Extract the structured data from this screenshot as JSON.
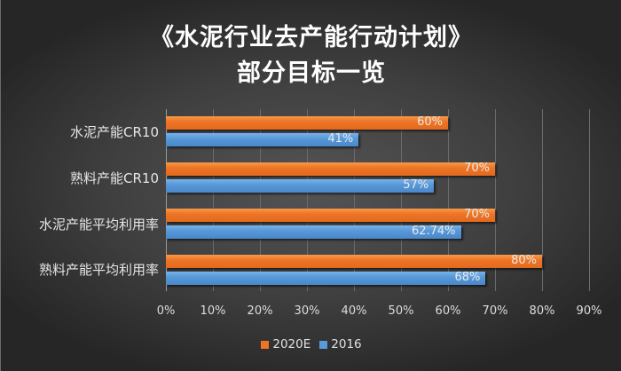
{
  "title": {
    "line1": "《水泥行业去产能行动计划》",
    "line2": "部分目标一览"
  },
  "colors": {
    "series_2020E": "#ee7526",
    "series_2016": "#5899d9",
    "background": "#3f3f3f"
  },
  "axis": {
    "ticks": [
      "0%",
      "10%",
      "20%",
      "30%",
      "40%",
      "50%",
      "60%",
      "70%",
      "80%",
      "90%"
    ]
  },
  "legend": {
    "items": [
      {
        "label": "2020E",
        "color": "#ee7526"
      },
      {
        "label": "2016",
        "color": "#5899d9"
      }
    ]
  },
  "categories": [
    {
      "label": "水泥产能CR10",
      "v2020E": 60,
      "v2016": 41,
      "label2020E": "60%",
      "label2016": "41%"
    },
    {
      "label": "熟料产能CR10",
      "v2020E": 70,
      "v2016": 57,
      "label2020E": "70%",
      "label2016": "57%"
    },
    {
      "label": "水泥产能平均利用率",
      "v2020E": 70,
      "v2016": 62.74,
      "label2020E": "70%",
      "label2016": "62.74%"
    },
    {
      "label": "熟料产能平均利用率",
      "v2020E": 80,
      "v2016": 68,
      "label2020E": "80%",
      "label2016": "68%"
    }
  ],
  "chart_data": {
    "type": "bar",
    "orientation": "horizontal",
    "title": "《水泥行业去产能行动计划》部分目标一览",
    "categories": [
      "水泥产能CR10",
      "熟料产能CR10",
      "水泥产能平均利用率",
      "熟料产能平均利用率"
    ],
    "series": [
      {
        "name": "2020E",
        "values": [
          60,
          70,
          70,
          80
        ],
        "color": "#ee7526"
      },
      {
        "name": "2016",
        "values": [
          41,
          57,
          62.74,
          68
        ],
        "color": "#5899d9"
      }
    ],
    "data_labels": {
      "2020E": [
        "60%",
        "70%",
        "70%",
        "80%"
      ],
      "2016": [
        "41%",
        "57%",
        "62.74%",
        "68%"
      ]
    },
    "xlabel": "",
    "ylabel": "",
    "xlim": [
      0,
      90
    ],
    "x_tick_labels": [
      "0%",
      "10%",
      "20%",
      "30%",
      "40%",
      "50%",
      "60%",
      "70%",
      "80%",
      "90%"
    ],
    "grid": "vertical",
    "legend_position": "bottom"
  }
}
